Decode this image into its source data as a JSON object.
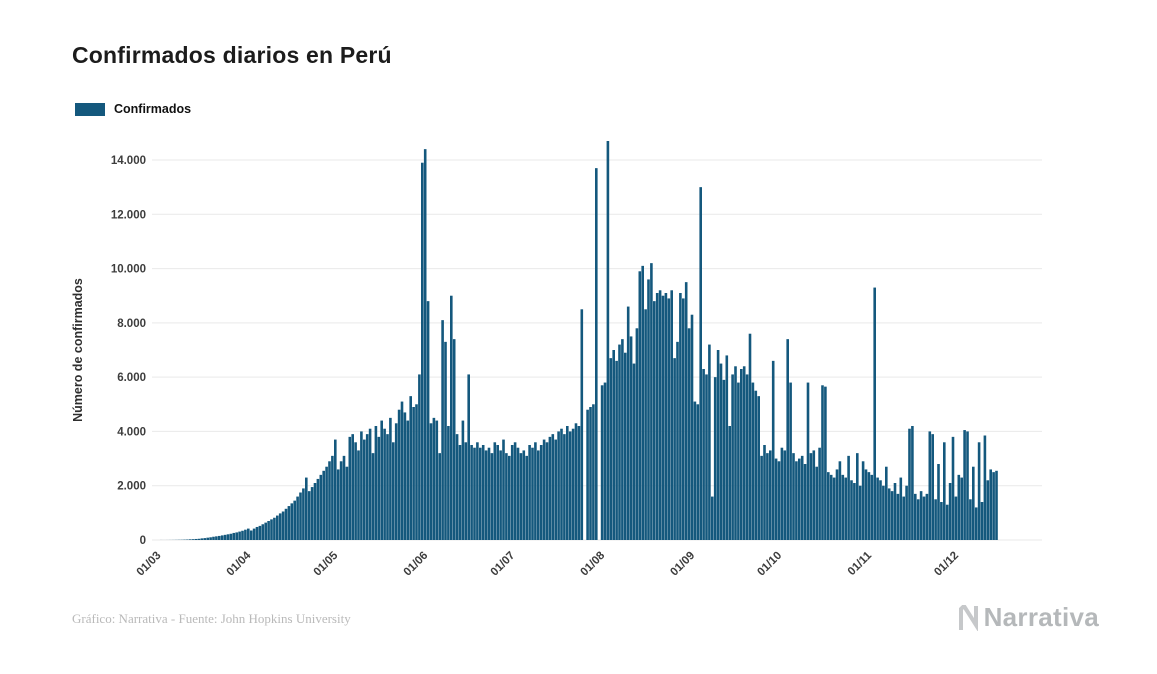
{
  "page": {
    "footer_caption": "Gráfico: Narrativa - Fuente: John Hopkins University",
    "brand_name": "Narrativa"
  },
  "chart_data": {
    "type": "bar",
    "title": "Confirmados diarios en Perú",
    "legend": [
      "Confirmados"
    ],
    "legend_position": "top-left",
    "xlabel": "",
    "ylabel": "Número de confirmados",
    "bar_color": "#14587d",
    "grid": true,
    "frequency": "daily",
    "y_ticks": [
      0,
      2000,
      4000,
      6000,
      8000,
      10000,
      12000,
      14000
    ],
    "y_tick_labels": [
      "0",
      "2.000",
      "4.000",
      "6.000",
      "8.000",
      "10.000",
      "12.000",
      "14.000"
    ],
    "ylim": [
      0,
      15500
    ],
    "x_tick_labels": [
      "01/03",
      "01/04",
      "01/05",
      "01/06",
      "01/07",
      "01/08",
      "01/09",
      "01/10",
      "01/11",
      "01/12"
    ],
    "x_tick_indices": [
      0,
      31,
      61,
      92,
      122,
      153,
      184,
      214,
      245,
      275
    ],
    "values": [
      2,
      1,
      2,
      3,
      4,
      6,
      8,
      10,
      14,
      18,
      25,
      30,
      38,
      45,
      60,
      70,
      86,
      100,
      120,
      135,
      150,
      170,
      190,
      210,
      230,
      260,
      280,
      310,
      340,
      380,
      420,
      350,
      420,
      480,
      520,
      580,
      640,
      700,
      760,
      820,
      900,
      980,
      1050,
      1150,
      1250,
      1350,
      1450,
      1600,
      1750,
      1900,
      2300,
      1800,
      1950,
      2100,
      2250,
      2400,
      2550,
      2700,
      2900,
      3100,
      3700,
      2600,
      2900,
      3100,
      2700,
      3800,
      3900,
      3600,
      3300,
      4000,
      3700,
      3900,
      4100,
      3200,
      4200,
      3800,
      4400,
      4100,
      3900,
      4500,
      3600,
      4300,
      4800,
      5100,
      4700,
      4400,
      5300,
      4900,
      5000,
      6100,
      13900,
      14400,
      8800,
      4300,
      4500,
      4400,
      3200,
      8100,
      7300,
      4200,
      9000,
      7400,
      3900,
      3500,
      4400,
      3600,
      6100,
      3500,
      3400,
      3600,
      3400,
      3500,
      3300,
      3400,
      3200,
      3600,
      3500,
      3300,
      3700,
      3200,
      3100,
      3500,
      3600,
      3400,
      3200,
      3300,
      3100,
      3500,
      3400,
      3600,
      3300,
      3500,
      3700,
      3600,
      3800,
      3900,
      3700,
      4000,
      4100,
      3900,
      4200,
      4000,
      4100,
      4300,
      4200,
      8500,
      0,
      4800,
      4900,
      5000,
      13700,
      0,
      5700,
      5800,
      14700,
      6700,
      7000,
      6600,
      7200,
      7400,
      6900,
      8600,
      7500,
      6500,
      7800,
      9900,
      10100,
      8500,
      9600,
      10200,
      8800,
      9100,
      9200,
      9000,
      9100,
      8900,
      9200,
      6700,
      7300,
      9100,
      8900,
      9500,
      7800,
      8300,
      5100,
      5000,
      13000,
      6300,
      6100,
      7200,
      1600,
      6000,
      7000,
      6500,
      5900,
      6800,
      4200,
      6100,
      6400,
      5800,
      6300,
      6400,
      6100,
      7600,
      5800,
      5500,
      5300,
      3100,
      3500,
      3200,
      3300,
      6600,
      3000,
      2900,
      3400,
      3300,
      7400,
      5800,
      3200,
      2900,
      3000,
      3100,
      2800,
      5800,
      3200,
      3300,
      2700,
      3400,
      5700,
      5650,
      2500,
      2400,
      2300,
      2600,
      2900,
      2400,
      2300,
      3100,
      2200,
      2100,
      3200,
      2000,
      2900,
      2600,
      2500,
      2400,
      9300,
      2300,
      2200,
      2000,
      2700,
      1900,
      1800,
      2100,
      1700,
      2300,
      1600,
      2000,
      4100,
      4200,
      1700,
      1500,
      1800,
      1600,
      1700,
      4000,
      3900,
      1500,
      2800,
      1400,
      3600,
      1300,
      2100,
      3800,
      1600,
      2400,
      2300,
      4050,
      4000,
      1500,
      2700,
      1200,
      3600,
      1400,
      3850,
      2200,
      2600,
      2500,
      2550
    ]
  }
}
